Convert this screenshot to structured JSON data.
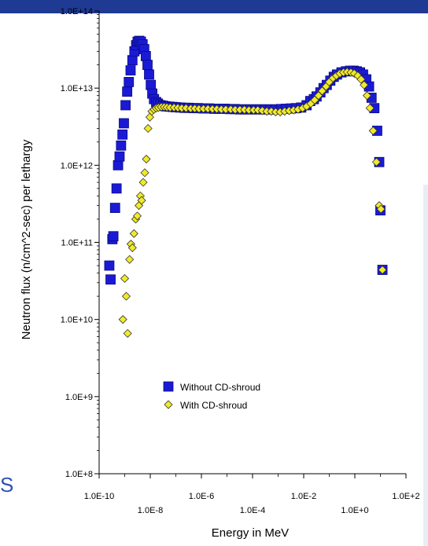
{
  "chart_data": {
    "type": "scatter",
    "xlabel": "Energy in MeV",
    "ylabel": "Neutron flux (n/cm^2-sec) per lethargy",
    "xscale": "log",
    "yscale": "log",
    "xlim": [
      1e-10,
      100
    ],
    "ylim": [
      100000000.0,
      100000000000000.0
    ],
    "x_tick_labels": [
      "1.0E-10",
      "1.0E-8",
      "1.0E-6",
      "1.0E-4",
      "1.0E-2",
      "1.0E+0",
      "1.0E+2"
    ],
    "y_tick_labels": [
      "1.0E+8",
      "1.0E+9",
      "1.0E+10",
      "1.0E+11",
      "1.0E+12",
      "1.0E+13",
      "1.0E+14"
    ],
    "grid": false,
    "legend_position": "bottom-left",
    "series": [
      {
        "name": "Without CD-shroud",
        "marker": "square",
        "color": "#1a1ad6",
        "points": [
          [
            2.5e-10,
            50000000000.0
          ],
          [
            2.8e-10,
            33000000000.0
          ],
          [
            3.3e-10,
            110000000000.0
          ],
          [
            3.6e-10,
            120000000000.0
          ],
          [
            4.2e-10,
            280000000000.0
          ],
          [
            4.8e-10,
            500000000000.0
          ],
          [
            5.5e-10,
            1000000000000.0
          ],
          [
            6.3e-10,
            1300000000000.0
          ],
          [
            7.2e-10,
            1800000000000.0
          ],
          [
            8.2e-10,
            2500000000000.0
          ],
          [
            9.3e-10,
            3500000000000.0
          ],
          [
            1.08e-09,
            6000000000000.0
          ],
          [
            1.25e-09,
            9000000000000.0
          ],
          [
            1.45e-09,
            12000000000000.0
          ],
          [
            1.7e-09,
            17000000000000.0
          ],
          [
            2e-09,
            23000000000000.0
          ],
          [
            2.4e-09,
            30000000000000.0
          ],
          [
            2.8e-09,
            36000000000000.0
          ],
          [
            3.2e-09,
            40000000000000.0
          ],
          [
            3.7e-09,
            41000000000000.0
          ],
          [
            4.3e-09,
            40000000000000.0
          ],
          [
            5e-09,
            37000000000000.0
          ],
          [
            5.8e-09,
            32000000000000.0
          ],
          [
            6.7e-09,
            26000000000000.0
          ],
          [
            7.8e-09,
            20000000000000.0
          ],
          [
            9e-09,
            15000000000000.0
          ],
          [
            1.05e-08,
            11000000000000.0
          ],
          [
            1.2e-08,
            8500000000000.0
          ],
          [
            1.4e-08,
            7200000000000.0
          ],
          [
            1.7e-08,
            6600000000000.0
          ],
          [
            2e-08,
            6300000000000.0
          ],
          [
            2.5e-08,
            6000000000000.0
          ],
          [
            3.2e-08,
            5900000000000.0
          ],
          [
            4e-08,
            5800000000000.0
          ],
          [
            5.5e-08,
            5750000000000.0
          ],
          [
            7.5e-08,
            5700000000000.0
          ],
          [
            1e-07,
            5650000000000.0
          ],
          [
            1.5e-07,
            5600000000000.0
          ],
          [
            2.2e-07,
            5550000000000.0
          ],
          [
            3.2e-07,
            5550000000000.0
          ],
          [
            5e-07,
            5500000000000.0
          ],
          [
            7.5e-07,
            5500000000000.0
          ],
          [
            1.2e-06,
            5450000000000.0
          ],
          [
            2e-06,
            5450000000000.0
          ],
          [
            3.2e-06,
            5400000000000.0
          ],
          [
            5e-06,
            5400000000000.0
          ],
          [
            8e-06,
            5400000000000.0
          ],
          [
            1.3e-05,
            5350000000000.0
          ],
          [
            2e-05,
            5350000000000.0
          ],
          [
            3.2e-05,
            5300000000000.0
          ],
          [
            5e-05,
            5300000000000.0
          ],
          [
            8e-05,
            5300000000000.0
          ],
          [
            0.00013,
            5300000000000.0
          ],
          [
            0.0002,
            5300000000000.0
          ],
          [
            0.00032,
            5300000000000.0
          ],
          [
            0.0005,
            5300000000000.0
          ],
          [
            0.0008,
            5300000000000.0
          ],
          [
            0.0013,
            5350000000000.0
          ],
          [
            0.002,
            5400000000000.0
          ],
          [
            0.0032,
            5450000000000.0
          ],
          [
            0.005,
            5500000000000.0
          ],
          [
            0.008,
            5600000000000.0
          ],
          [
            0.013,
            6000000000000.0
          ],
          [
            0.018,
            6800000000000.0
          ],
          [
            0.025,
            7200000000000.0
          ],
          [
            0.032,
            7800000000000.0
          ],
          [
            0.045,
            8800000000000.0
          ],
          [
            0.06,
            10000000000000.0
          ],
          [
            0.08,
            11000000000000.0
          ],
          [
            0.11,
            12500000000000.0
          ],
          [
            0.15,
            14000000000000.0
          ],
          [
            0.2,
            15000000000000.0
          ],
          [
            0.3,
            16000000000000.0
          ],
          [
            0.45,
            16500000000000.0
          ],
          [
            0.65,
            16800000000000.0
          ],
          [
            0.9,
            16800000000000.0
          ],
          [
            1.2,
            16500000000000.0
          ],
          [
            1.6,
            16000000000000.0
          ],
          [
            2.1,
            15000000000000.0
          ],
          [
            2.8,
            13000000000000.0
          ],
          [
            3.6,
            10500000000000.0
          ],
          [
            4.5,
            7500000000000.0
          ],
          [
            5.8,
            5500000000000.0
          ],
          [
            7.5,
            2800000000000.0
          ],
          [
            9.0,
            1100000000000.0
          ],
          [
            10.0,
            260000000000.0
          ],
          [
            12.0,
            44000000000.0
          ]
        ]
      },
      {
        "name": "With CD-shroud",
        "marker": "diamond",
        "color": "#f0ea28",
        "points": [
          [
            8.5e-10,
            10000000000.0
          ],
          [
            1e-09,
            34000000000.0
          ],
          [
            1.15e-09,
            20000000000.0
          ],
          [
            1.3e-09,
            6600000000.0
          ],
          [
            1.55e-09,
            60000000000.0
          ],
          [
            1.75e-09,
            95000000000.0
          ],
          [
            2e-09,
            85000000000.0
          ],
          [
            2.3e-09,
            130000000000.0
          ],
          [
            2.7e-09,
            200000000000.0
          ],
          [
            3.1e-09,
            220000000000.0
          ],
          [
            3.6e-09,
            300000000000.0
          ],
          [
            4.1e-09,
            400000000000.0
          ],
          [
            4.6e-09,
            350000000000.0
          ],
          [
            5.3e-09,
            600000000000.0
          ],
          [
            6.1e-09,
            800000000000.0
          ],
          [
            7e-09,
            1200000000000.0
          ],
          [
            8.2e-09,
            3000000000000.0
          ],
          [
            9.6e-09,
            4200000000000.0
          ],
          [
            1.15e-08,
            5000000000000.0
          ],
          [
            1.4e-08,
            5300000000000.0
          ],
          [
            1.7e-08,
            5500000000000.0
          ],
          [
            2.1e-08,
            5600000000000.0
          ],
          [
            2.7e-08,
            5700000000000.0
          ],
          [
            3.5e-08,
            5700000000000.0
          ],
          [
            4.5e-08,
            5650000000000.0
          ],
          [
            6e-08,
            5600000000000.0
          ],
          [
            8.5e-08,
            5600000000000.0
          ],
          [
            1.2e-07,
            5550000000000.0
          ],
          [
            1.7e-07,
            5500000000000.0
          ],
          [
            2.5e-07,
            5500000000000.0
          ],
          [
            3.8e-07,
            5450000000000.0
          ],
          [
            5.5e-07,
            5450000000000.0
          ],
          [
            8e-07,
            5400000000000.0
          ],
          [
            1.2e-06,
            5400000000000.0
          ],
          [
            1.8e-06,
            5400000000000.0
          ],
          [
            2.7e-06,
            5350000000000.0
          ],
          [
            4e-06,
            5350000000000.0
          ],
          [
            6e-06,
            5300000000000.0
          ],
          [
            9e-06,
            5300000000000.0
          ],
          [
            1.4e-05,
            5300000000000.0
          ],
          [
            2.1e-05,
            5250000000000.0
          ],
          [
            3.2e-05,
            5250000000000.0
          ],
          [
            4.8e-05,
            5250000000000.0
          ],
          [
            7.2e-05,
            5200000000000.0
          ],
          [
            0.00011,
            5200000000000.0
          ],
          [
            0.00016,
            5200000000000.0
          ],
          [
            0.00024,
            5100000000000.0
          ],
          [
            0.00036,
            5000000000000.0
          ],
          [
            0.00054,
            5000000000000.0
          ],
          [
            0.0008,
            4900000000000.0
          ],
          [
            0.0012,
            4900000000000.0
          ],
          [
            0.0018,
            5000000000000.0
          ],
          [
            0.0027,
            5100000000000.0
          ],
          [
            0.004,
            5200000000000.0
          ],
          [
            0.006,
            5300000000000.0
          ],
          [
            0.009,
            5500000000000.0
          ],
          [
            0.013,
            5800000000000.0
          ],
          [
            0.019,
            6300000000000.0
          ],
          [
            0.027,
            7000000000000.0
          ],
          [
            0.038,
            8000000000000.0
          ],
          [
            0.053,
            9200000000000.0
          ],
          [
            0.075,
            10500000000000.0
          ],
          [
            0.1,
            12000000000000.0
          ],
          [
            0.14,
            13500000000000.0
          ],
          [
            0.19,
            14500000000000.0
          ],
          [
            0.26,
            15500000000000.0
          ],
          [
            0.36,
            16000000000000.0
          ],
          [
            0.5,
            16200000000000.0
          ],
          [
            0.7,
            16000000000000.0
          ],
          [
            0.95,
            15500000000000.0
          ],
          [
            1.3,
            14500000000000.0
          ],
          [
            1.75,
            13000000000000.0
          ],
          [
            2.3,
            11000000000000.0
          ],
          [
            3.0,
            8000000000000.0
          ],
          [
            3.9,
            5500000000000.0
          ],
          [
            5.2,
            2800000000000.0
          ],
          [
            7.0,
            1100000000000.0
          ],
          [
            9.0,
            300000000000.0
          ],
          [
            10.5,
            270000000000.0
          ],
          [
            12.0,
            44000000000.0
          ]
        ]
      }
    ]
  },
  "page": {
    "edge_letter": "S",
    "colors": {
      "header_band": "#1f3a93",
      "edge_letter": "#2f4fb5",
      "right_panel": "#e9eef5"
    }
  }
}
